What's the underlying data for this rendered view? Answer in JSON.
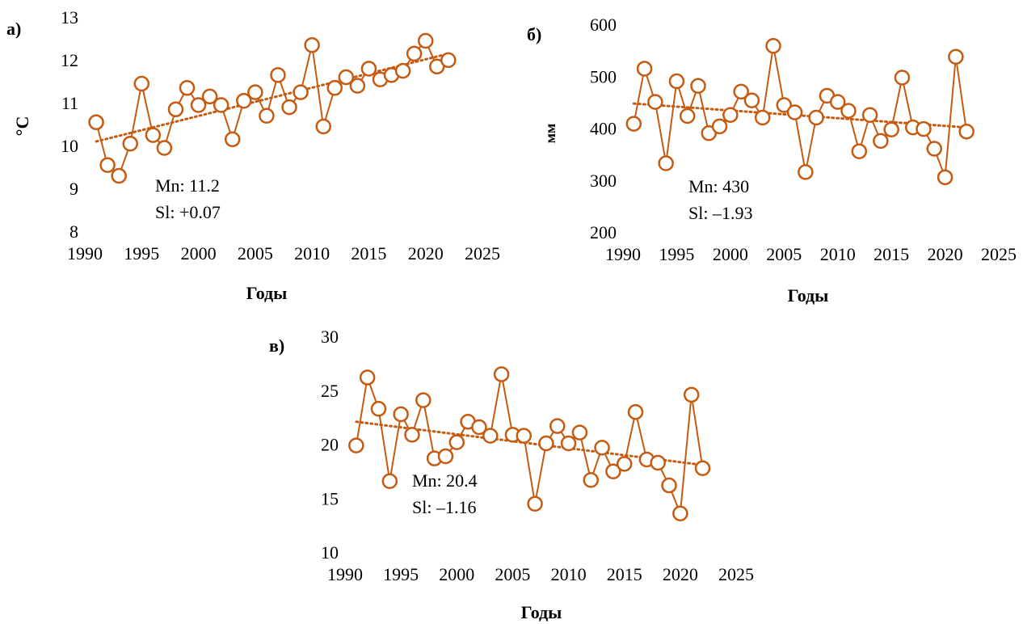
{
  "chart_data": [
    {
      "type": "line",
      "panel_label": "а)",
      "y_label": "°C",
      "x_label": "Годы",
      "annotations": [
        "Mn: 11.2",
        "Sl: +0.07"
      ],
      "x": [
        1991,
        1992,
        1993,
        1994,
        1995,
        1996,
        1997,
        1998,
        1999,
        2000,
        2001,
        2002,
        2003,
        2004,
        2005,
        2006,
        2007,
        2008,
        2009,
        2010,
        2011,
        2012,
        2013,
        2014,
        2015,
        2016,
        2017,
        2018,
        2019,
        2020,
        2021,
        2022
      ],
      "series": [
        {
          "color": "#c55a11",
          "values": [
            10.6,
            9.6,
            9.35,
            10.1,
            11.5,
            10.3,
            10.0,
            10.9,
            11.4,
            11.0,
            11.2,
            11.0,
            10.2,
            11.1,
            11.3,
            10.75,
            11.7,
            10.95,
            11.3,
            12.4,
            10.5,
            11.4,
            11.65,
            11.45,
            11.85,
            11.6,
            11.7,
            11.8,
            12.2,
            12.5,
            11.9,
            12.05
          ]
        }
      ],
      "trendline": {
        "x": [
          1991,
          2022
        ],
        "values": [
          10.15,
          12.2
        ]
      },
      "xlim": [
        1990,
        2025
      ],
      "xticks": [
        1990,
        1995,
        2000,
        2005,
        2010,
        2015,
        2020,
        2025
      ],
      "ylim": [
        8,
        13
      ],
      "yticks": [
        8,
        9,
        10,
        11,
        12,
        13
      ],
      "grid": false
    },
    {
      "type": "line",
      "panel_label": "б)",
      "y_label": "мм",
      "x_label": "Годы",
      "annotations": [
        "Mn: 430",
        "Sl: –1.93"
      ],
      "x": [
        1991,
        1992,
        1993,
        1994,
        1995,
        1996,
        1997,
        1998,
        1999,
        2000,
        2001,
        2002,
        2003,
        2004,
        2005,
        2006,
        2007,
        2008,
        2009,
        2010,
        2011,
        2012,
        2013,
        2014,
        2015,
        2016,
        2017,
        2018,
        2019,
        2020,
        2021,
        2022
      ],
      "series": [
        {
          "color": "#c55a11",
          "values": [
            413,
            519,
            455,
            337,
            495,
            428,
            486,
            395,
            408,
            430,
            475,
            458,
            425,
            563,
            449,
            435,
            320,
            425,
            467,
            455,
            438,
            360,
            430,
            380,
            402,
            502,
            406,
            403,
            365,
            310,
            542,
            398
          ]
        }
      ],
      "trendline": {
        "x": [
          1991,
          2022
        ],
        "values": [
          452,
          406
        ]
      },
      "xlim": [
        1990,
        2025
      ],
      "xticks": [
        1990,
        1995,
        2000,
        2005,
        2010,
        2015,
        2020,
        2025
      ],
      "ylim": [
        200,
        600
      ],
      "yticks": [
        200,
        300,
        400,
        500,
        600
      ],
      "grid": false
    },
    {
      "type": "line",
      "panel_label": "в)",
      "x_label": "Годы",
      "annotations": [
        "Mn: 20.4",
        "Sl: –1.16"
      ],
      "x": [
        1991,
        1992,
        1993,
        1994,
        1995,
        1996,
        1997,
        1998,
        1999,
        2000,
        2001,
        2002,
        2003,
        2004,
        2005,
        2006,
        2007,
        2008,
        2009,
        2010,
        2011,
        2012,
        2013,
        2014,
        2015,
        2016,
        2017,
        2018,
        2019,
        2020,
        2021,
        2022
      ],
      "series": [
        {
          "color": "#c55a11",
          "values": [
            20.1,
            26.4,
            23.5,
            16.8,
            23.0,
            21.1,
            24.3,
            18.9,
            19.1,
            20.4,
            22.3,
            21.8,
            21.0,
            26.7,
            21.1,
            21.0,
            14.7,
            20.3,
            21.9,
            20.3,
            21.3,
            16.9,
            19.9,
            17.7,
            18.4,
            23.2,
            18.8,
            18.5,
            16.4,
            13.8,
            24.8,
            18.0
          ]
        }
      ],
      "trendline": {
        "x": [
          1991,
          2022
        ],
        "values": [
          22.3,
          18.3
        ]
      },
      "xlim": [
        1990,
        2025
      ],
      "xticks": [
        1990,
        1995,
        2000,
        2005,
        2010,
        2015,
        2020,
        2025
      ],
      "ylim": [
        10,
        30
      ],
      "yticks": [
        10,
        15,
        20,
        25,
        30
      ],
      "grid": false
    }
  ]
}
